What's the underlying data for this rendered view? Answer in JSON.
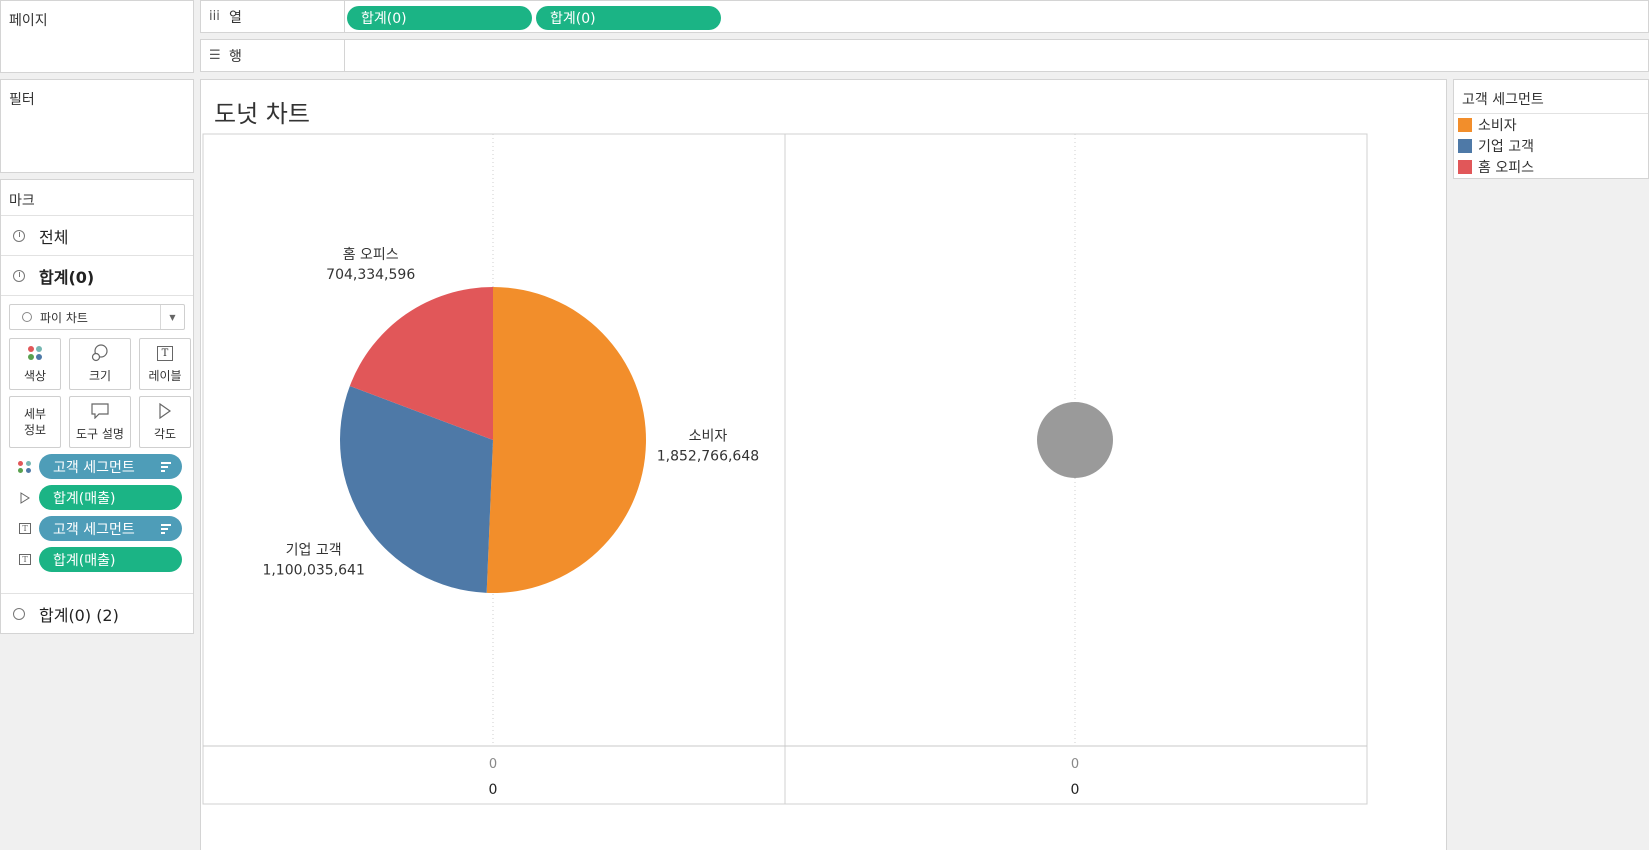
{
  "pages": {
    "title": "페이지"
  },
  "filters": {
    "title": "필터"
  },
  "marks": {
    "title": "마크",
    "layers": [
      {
        "label": "전체"
      },
      {
        "label": "합계(0)"
      }
    ],
    "mark_type": "파이 차트",
    "buttons": {
      "color": "색상",
      "size": "크기",
      "label": "레이블",
      "detail_l1": "세부",
      "detail_l2": "정보",
      "tooltip": "도구 설명",
      "angle": "각도"
    },
    "pills": [
      {
        "field": "고객 세그먼트",
        "icon": "color-icon"
      },
      {
        "field": "합계(매출)",
        "icon": "angle-icon"
      },
      {
        "field": "고객 세그먼트",
        "icon": "label-icon"
      },
      {
        "field": "합계(매출)",
        "icon": "label-icon"
      }
    ],
    "footer_layer": "합계(0) (2)"
  },
  "shelves": {
    "columns": {
      "label": "열",
      "pills": [
        "합계(0)",
        "합계(0)"
      ]
    },
    "rows": {
      "label": "행"
    }
  },
  "sheet": {
    "title": "도넛 차트"
  },
  "legend": {
    "title": "고객 세그먼트",
    "items": [
      {
        "label": "소비자",
        "color": "#f28e2b"
      },
      {
        "label": "기업 고객",
        "color": "#4e79a7"
      },
      {
        "label": "홈 오피스",
        "color": "#e15759"
      }
    ]
  },
  "chart_data": [
    {
      "type": "pie",
      "categories": [
        "소비자",
        "기업 고객",
        "홈 오피스"
      ],
      "values": [
        1852766648,
        1100035641,
        704334596
      ],
      "value_labels": [
        "1,852,766,648",
        "1,100,035,641",
        "704,334,596"
      ],
      "colors": [
        "#f28e2b",
        "#4e79a7",
        "#e15759"
      ],
      "x_tick": "0",
      "x_header": "0"
    },
    {
      "type": "pie",
      "categories": [
        ""
      ],
      "values": [
        1
      ],
      "colors": [
        "#9a9a9a"
      ],
      "x_tick": "0",
      "x_header": "0"
    }
  ]
}
